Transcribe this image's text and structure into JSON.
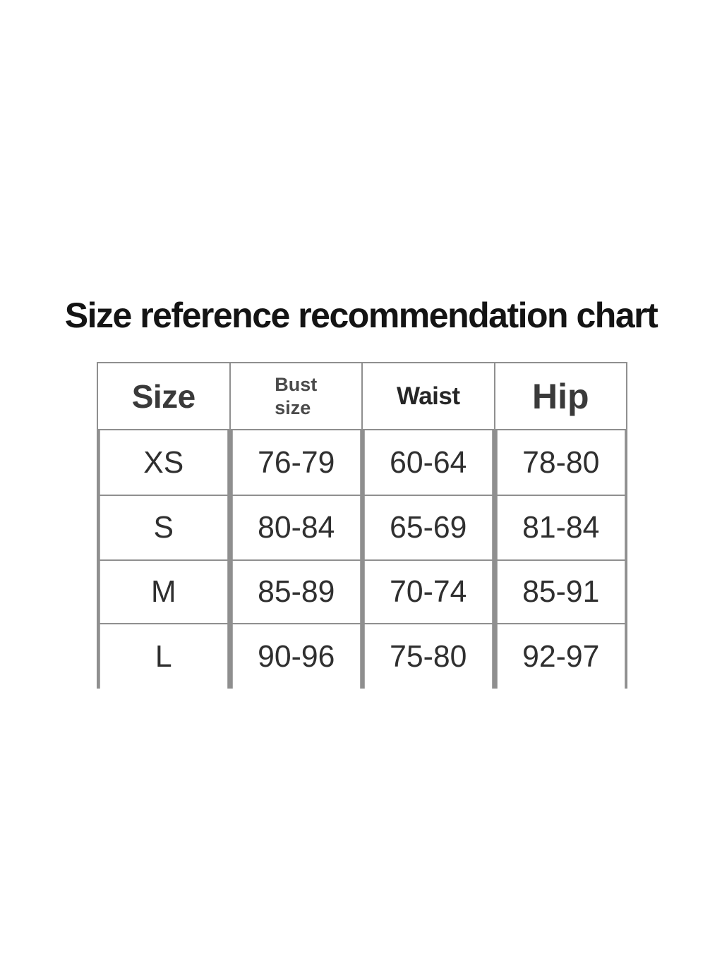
{
  "page": {
    "title": "Size reference recommendation chart",
    "background_color": "#ffffff",
    "grid_line_color": "#8f8f8f"
  },
  "table": {
    "header": {
      "size_label": "Size",
      "bust_label_line1": "Bust",
      "bust_label_line2": "size",
      "waist_label": "Waist",
      "hip_label": "Hip"
    },
    "rows": [
      {
        "size": "XS",
        "bust": "76-79",
        "waist": "60-64",
        "hip": "78-80"
      },
      {
        "size": "S",
        "bust": "80-84",
        "waist": "65-69",
        "hip": "81-84"
      },
      {
        "size": "M",
        "bust": "85-89",
        "waist": "70-74",
        "hip": "85-91"
      },
      {
        "size": "L",
        "bust": "90-96",
        "waist": "75-80",
        "hip": "92-97"
      }
    ]
  },
  "chart_data": {
    "type": "table",
    "title": "Size reference recommendation chart",
    "columns": [
      "Size",
      "Bust size",
      "Waist",
      "Hip"
    ],
    "rows": [
      [
        "XS",
        "76-79",
        "60-64",
        "78-80"
      ],
      [
        "S",
        "80-84",
        "65-69",
        "81-84"
      ],
      [
        "M",
        "85-89",
        "70-74",
        "85-91"
      ],
      [
        "L",
        "90-96",
        "75-80",
        "92-97"
      ]
    ]
  }
}
